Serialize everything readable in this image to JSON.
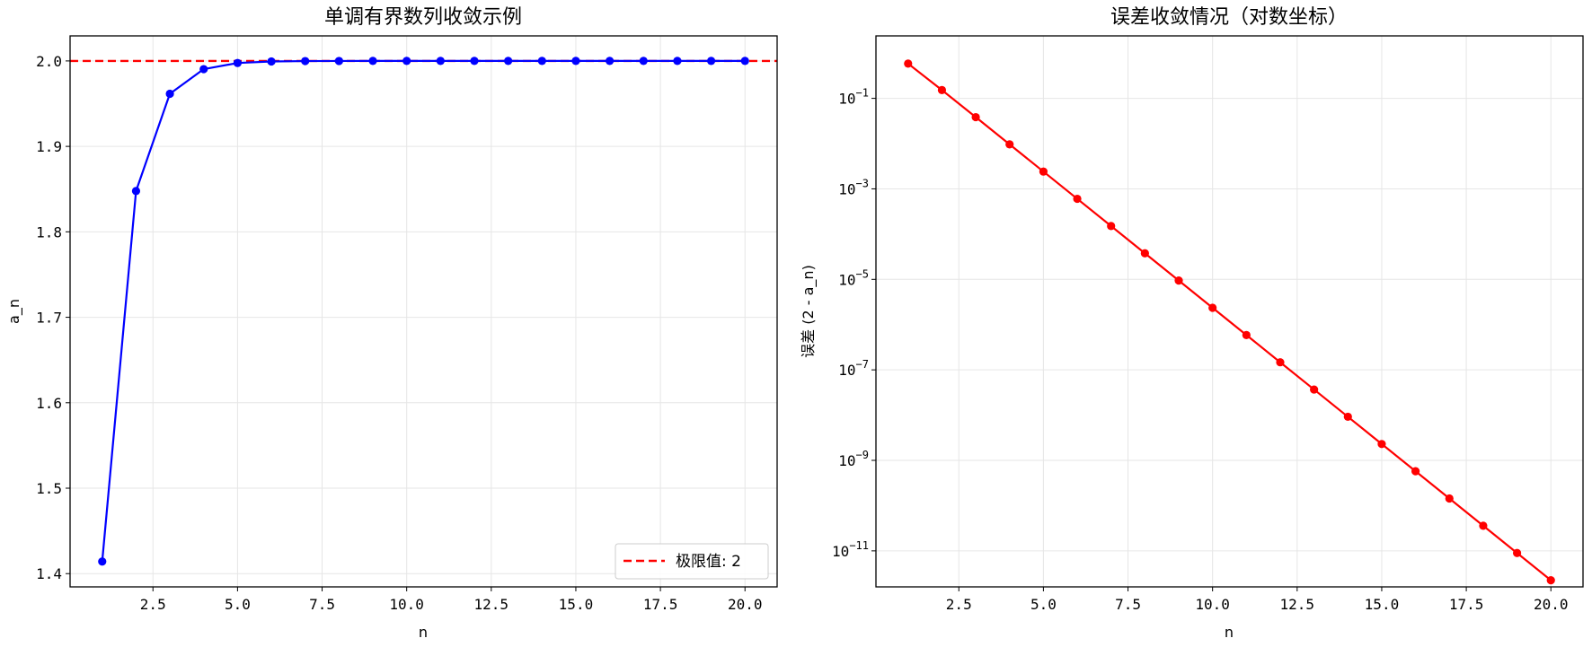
{
  "chart_data": [
    {
      "type": "line",
      "title": "单调有界数列收敛示例",
      "xlabel": "n",
      "ylabel": "a_n",
      "xlim": [
        0.05,
        20.95
      ],
      "ylim": [
        1.3845,
        2.0293
      ],
      "xticks": [
        2.5,
        5.0,
        7.5,
        10.0,
        12.5,
        15.0,
        17.5,
        20.0
      ],
      "xtick_labels": [
        "2.5",
        "5.0",
        "7.5",
        "10.0",
        "12.5",
        "15.0",
        "17.5",
        "20.0"
      ],
      "yticks": [
        1.4,
        1.5,
        1.6,
        1.7,
        1.8,
        1.9,
        2.0
      ],
      "ytick_labels": [
        "1.4",
        "1.5",
        "1.6",
        "1.7",
        "1.8",
        "1.9",
        "2.0"
      ],
      "grid": true,
      "legend_position": "lower-right",
      "colors": {
        "series": "#0000ff",
        "limit": "#ff0000"
      },
      "series": [
        {
          "x": [
            1,
            2,
            3,
            4,
            5,
            6,
            7,
            8,
            9,
            10,
            11,
            12,
            13,
            14,
            15,
            16,
            17,
            18,
            19,
            20
          ],
          "values": [
            1.4142,
            1.8478,
            1.9616,
            1.9904,
            1.9976,
            1.9994,
            1.99985,
            1.99996,
            1.99999,
            2.0,
            2.0,
            2.0,
            2.0,
            2.0,
            2.0,
            2.0,
            2.0,
            2.0,
            2.0,
            2.0
          ]
        }
      ],
      "reference_line": {
        "name": "极限值: 2",
        "y": 2.0,
        "style": "dashed"
      }
    },
    {
      "type": "line",
      "title": "误差收敛情况（对数坐标）",
      "xlabel": "n",
      "ylabel": "误差 (2 - a_n)",
      "yscale": "log",
      "xlim": [
        0.05,
        20.95
      ],
      "ylim": [
        1.6e-12,
        2.4
      ],
      "xticks": [
        2.5,
        5.0,
        7.5,
        10.0,
        12.5,
        15.0,
        17.5,
        20.0
      ],
      "xtick_labels": [
        "2.5",
        "5.0",
        "7.5",
        "10.0",
        "12.5",
        "15.0",
        "17.5",
        "20.0"
      ],
      "yticks": [
        0.1,
        0.001,
        1e-05,
        1e-07,
        1e-09,
        1e-11
      ],
      "ytick_labels": [
        {
          "base": "10",
          "exp": "−1"
        },
        {
          "base": "10",
          "exp": "−3"
        },
        {
          "base": "10",
          "exp": "−5"
        },
        {
          "base": "10",
          "exp": "−7"
        },
        {
          "base": "10",
          "exp": "−9"
        },
        {
          "base": "10",
          "exp": "−11"
        }
      ],
      "grid": true,
      "colors": {
        "series": "#ff0000"
      },
      "series": [
        {
          "x": [
            1,
            2,
            3,
            4,
            5,
            6,
            7,
            8,
            9,
            10,
            11,
            12,
            13,
            14,
            15,
            16,
            17,
            18,
            19,
            20
          ],
          "values": [
            0.5858,
            0.1522,
            0.03843,
            0.009634,
            0.00241,
            0.0006025,
            0.0001506,
            3.765e-05,
            9.413e-06,
            2.353e-06,
            5.883e-07,
            1.471e-07,
            3.677e-08,
            9.192e-09,
            2.298e-09,
            5.745e-10,
            1.436e-10,
            3.59e-11,
            8.98e-12,
            2.24e-12
          ]
        }
      ]
    }
  ]
}
